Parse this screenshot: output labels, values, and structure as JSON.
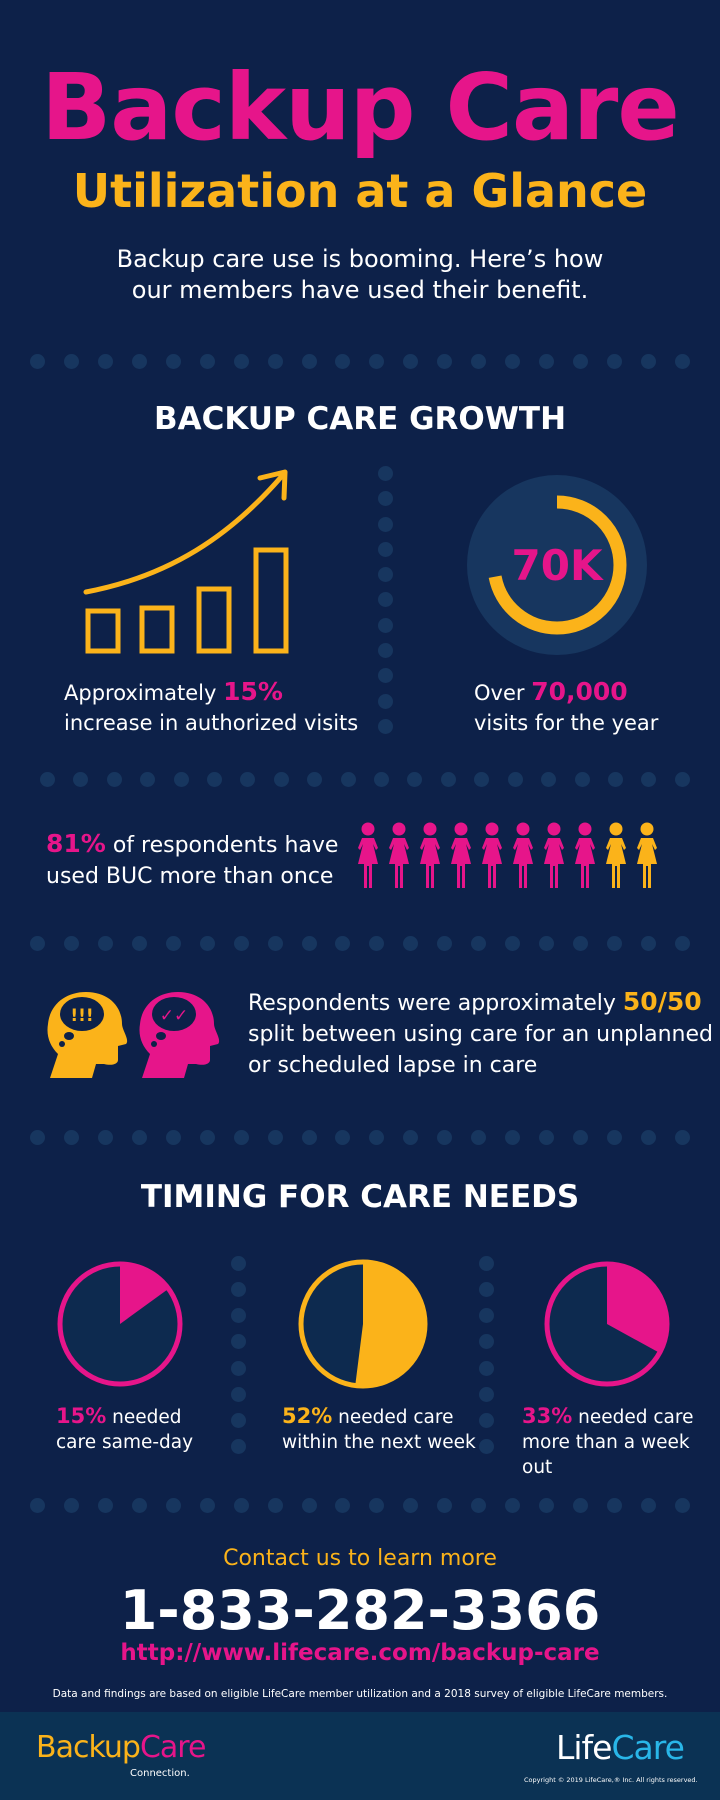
{
  "header": {
    "title": "Backup Care",
    "subtitle": "Utilization at a Glance",
    "intro_line1": "Backup care use is booming. Here’s how",
    "intro_line2": "our members have used their benefit."
  },
  "growth": {
    "section_title": "BACKUP CARE GROWTH",
    "visits_stat": {
      "prefix": "Approximately ",
      "value": "15%",
      "line2": "increase in authorized visits"
    },
    "ring": {
      "label": "70K",
      "fraction": 0.72
    },
    "year_stat": {
      "prefix": "Over ",
      "value": "70,000",
      "line2": "visits for the year"
    }
  },
  "respondents": {
    "value": "81%",
    "text1": " of respondents have",
    "text2": "used BUC more than once",
    "people_total": 10,
    "people_highlighted": 8
  },
  "split": {
    "line1_prefix": "Respondents were approximately ",
    "line1_value": "50/50",
    "line2": "split between using care for an unplanned",
    "line3": "or scheduled lapse in care",
    "head1_symbol": "!!!",
    "head2_symbol": "✓✓"
  },
  "timing": {
    "section_title": "TIMING FOR CARE NEEDS",
    "pies": [
      {
        "value": "15%",
        "text1": " needed",
        "text2": "care same-day",
        "fraction": 0.15,
        "color": "#e6158a"
      },
      {
        "value": "52%",
        "text1": " needed care",
        "text2": "within the next week",
        "fraction": 0.52,
        "color": "#fbb31a"
      },
      {
        "value": "33%",
        "text1": " needed care",
        "text2": "more than a week out",
        "fraction": 0.33,
        "color": "#e6158a"
      }
    ]
  },
  "contact": {
    "cta": "Contact us to learn more",
    "phone": "1-833-282-3366",
    "url": "http://www.lifecare.com/backup-care",
    "disclaimer": "Data and findings are based on eligible LifeCare member utilization and a 2018 survey of eligible LifeCare members."
  },
  "footer": {
    "left_logo_a": "Backup",
    "left_logo_b": "Care",
    "left_logo_sub": "Connection.",
    "right_logo_a": "Life",
    "right_logo_b": "Care",
    "copyright": "Copyright © 2019 LifeCare,® Inc. All rights reserved."
  },
  "colors": {
    "background": "#0d2149",
    "pink": "#e6158a",
    "gold": "#fbb31a",
    "dot": "#17365f"
  }
}
